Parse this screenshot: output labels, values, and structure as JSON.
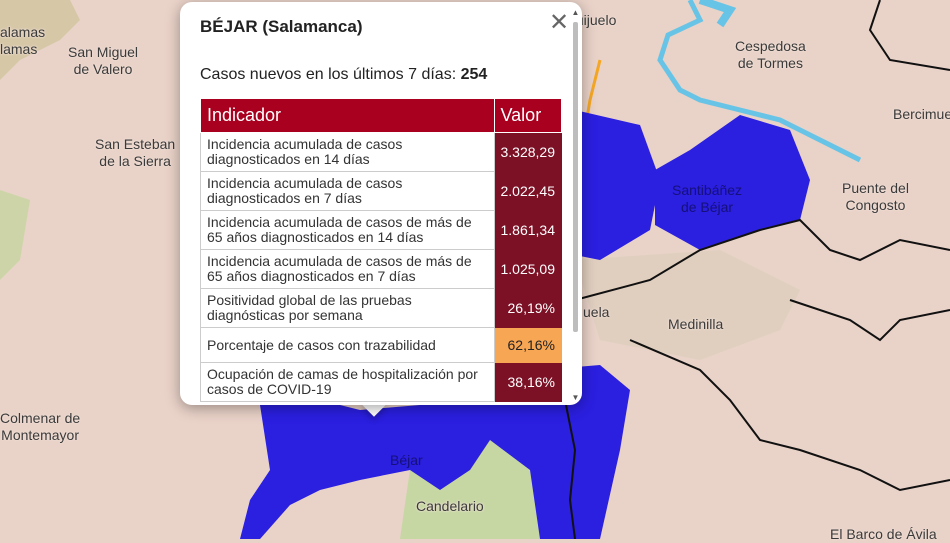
{
  "map": {
    "places": [
      {
        "id": "lamas",
        "label": "alamas",
        "sub": "lamas"
      },
      {
        "id": "san-miguel",
        "label": "San Miguel",
        "sub": "de Valero"
      },
      {
        "id": "san-esteban",
        "label": "San Esteban",
        "sub": "de la Sierra"
      },
      {
        "id": "guijuelo",
        "label": "Guijuelo"
      },
      {
        "id": "cespedosa",
        "label": "Cespedosa",
        "sub": "de Tormes"
      },
      {
        "id": "bercimuel",
        "label": "Bercimuel"
      },
      {
        "id": "santibanez",
        "label": "Santibáñez",
        "sub": "de Béjar"
      },
      {
        "id": "puente",
        "label": "Puente del",
        "sub": "Congosto"
      },
      {
        "id": "medinilla",
        "label": "Medinilla"
      },
      {
        "id": "puela",
        "label": "uela"
      },
      {
        "id": "colmenar",
        "label": "Colmenar de",
        "sub": "Montemayor"
      },
      {
        "id": "bejar",
        "label": "Béjar"
      },
      {
        "id": "candelario",
        "label": "Candelario"
      },
      {
        "id": "barco",
        "label": "El Barco de Ávila"
      }
    ],
    "colors": {
      "background": "#e9d2c8",
      "district": "#2b1fe0",
      "river": "#68c4e6",
      "road": "#f5a623",
      "green": "#c8d9a6",
      "border": "#111111"
    }
  },
  "popup": {
    "title": "BÉJAR (Salamanca)",
    "close_icon": "close-icon",
    "cases_label": "Casos nuevos en los últimos 7 días:",
    "cases_value": "254",
    "table": {
      "headers": [
        "Indicador",
        "Valor"
      ],
      "rows": [
        {
          "indicator": "Incidencia acumulada de casos diagnosticados en 14 días",
          "value": "3.328,29",
          "level": "high"
        },
        {
          "indicator": "Incidencia acumulada de casos diagnosticados en 7 días",
          "value": "2.022,45",
          "level": "high"
        },
        {
          "indicator": "Incidencia acumulada de casos de más de 65 años diagnosticados en 14 días",
          "value": "1.861,34",
          "level": "high"
        },
        {
          "indicator": "Incidencia acumulada de casos de más de 65 años diagnosticados en 7 días",
          "value": "1.025,09",
          "level": "high"
        },
        {
          "indicator": "Positividad global de las pruebas diagnósticas por semana",
          "value": "26,19%",
          "level": "high"
        },
        {
          "indicator": "Porcentaje de casos con trazabilidad",
          "value": "62,16%",
          "level": "medium"
        },
        {
          "indicator": "Ocupación de camas de hospitalización por casos de COVID-19",
          "value": "38,16%",
          "level": "high"
        }
      ]
    }
  }
}
